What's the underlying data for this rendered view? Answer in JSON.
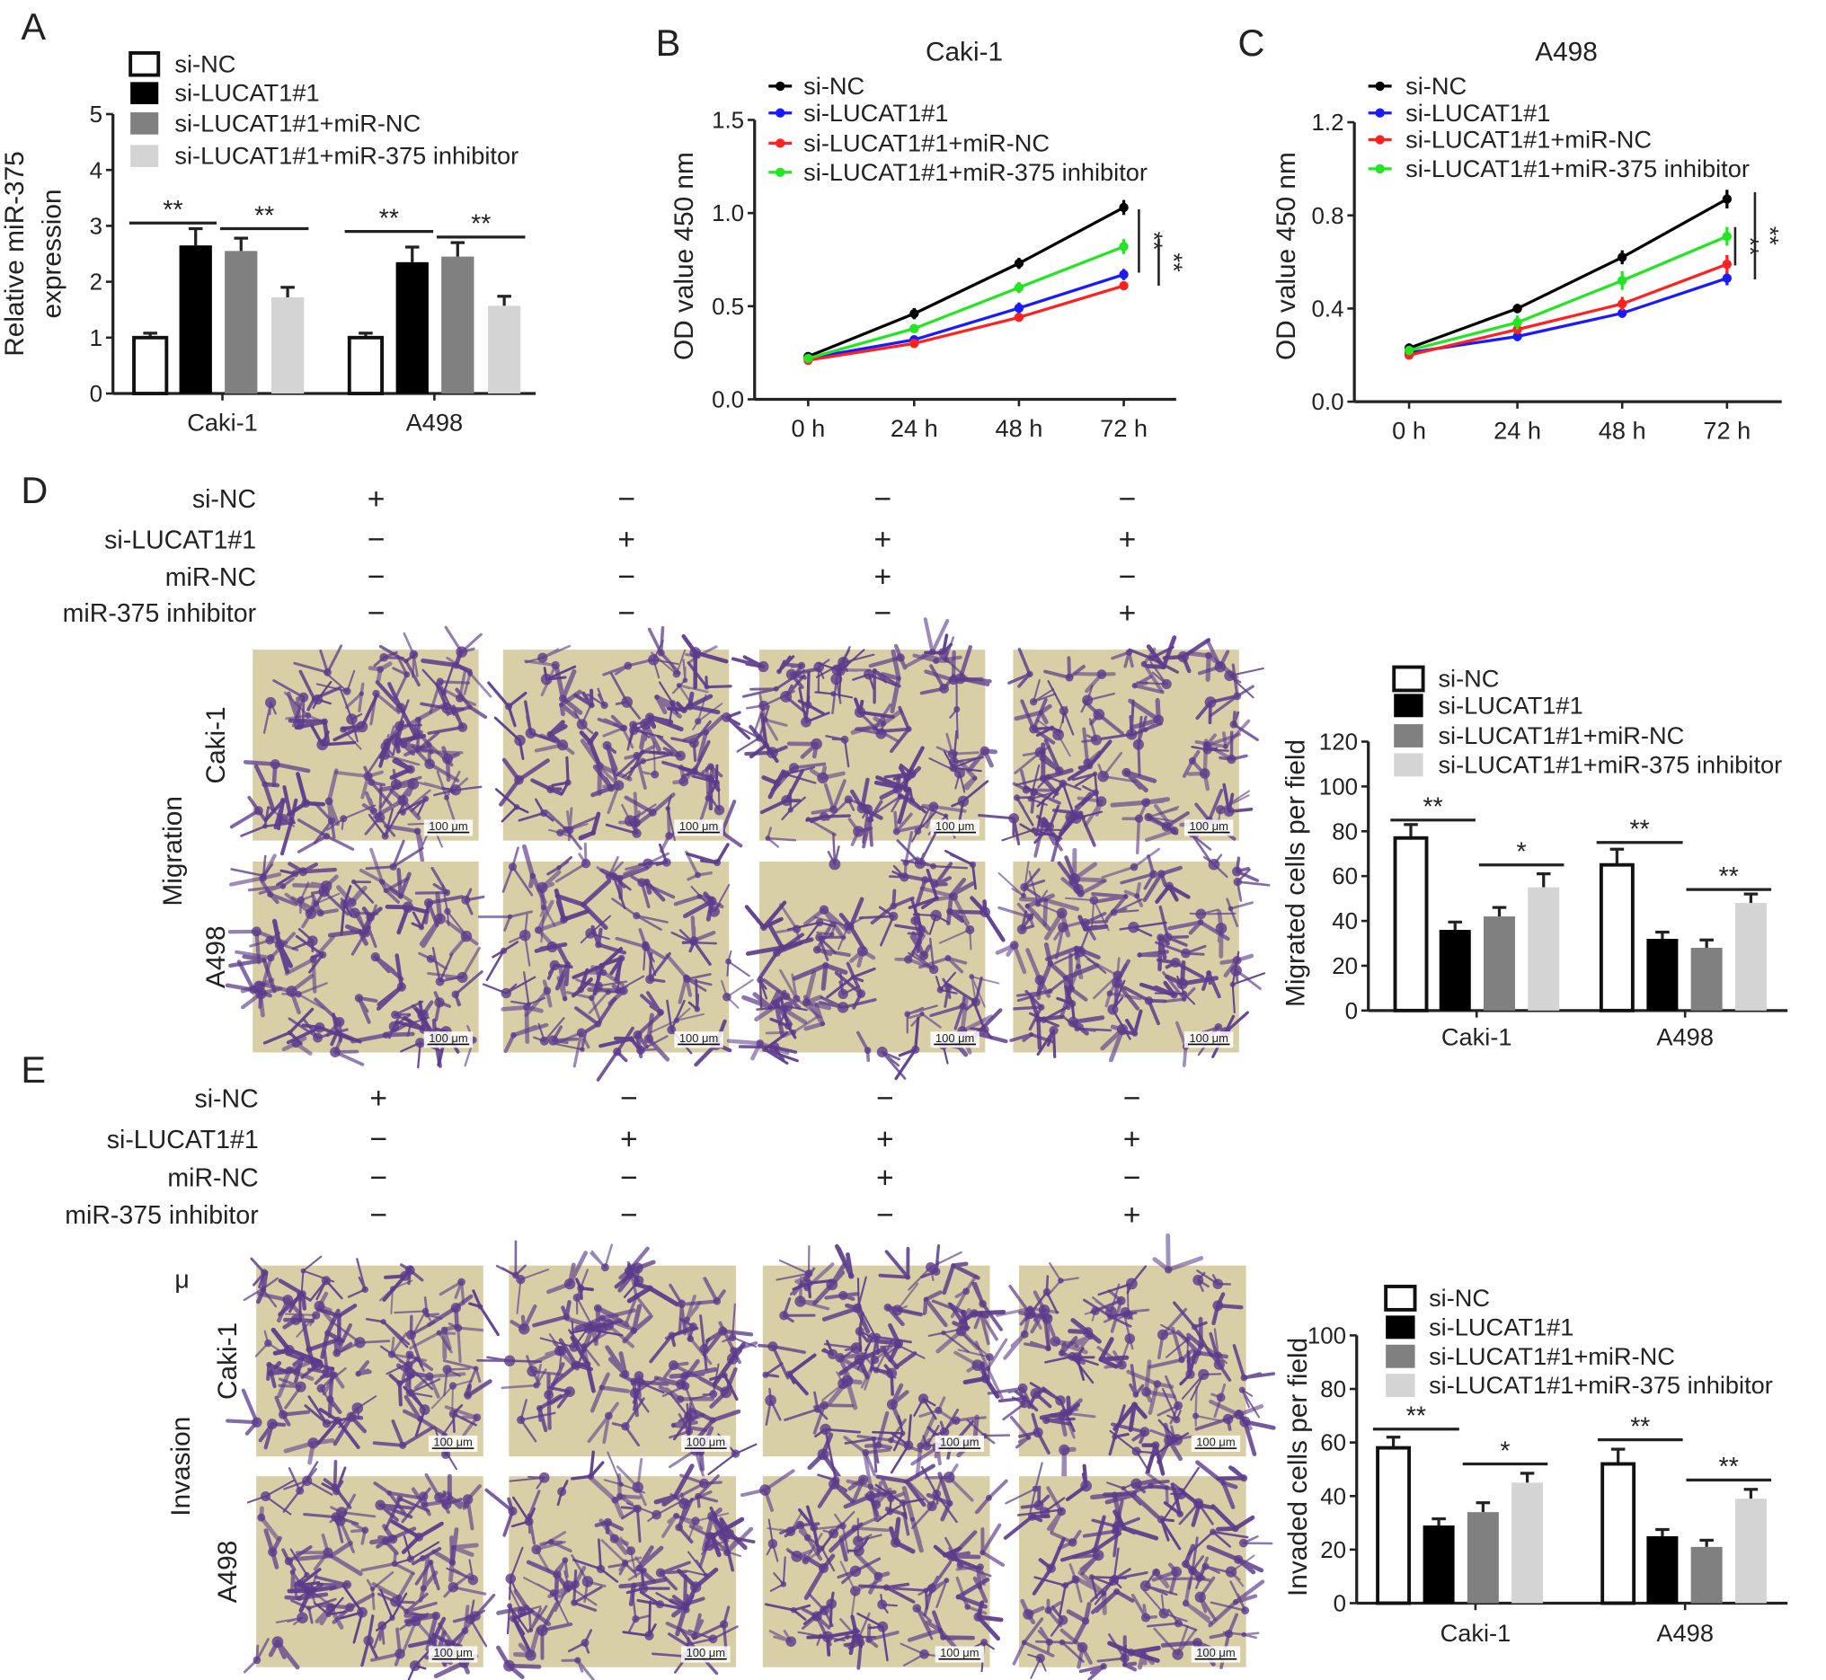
{
  "panel_letters": [
    "A",
    "B",
    "C",
    "D",
    "E"
  ],
  "legend_series": [
    "si-NC",
    "si-LUCAT1#1",
    "si-LUCAT1#1+miR-NC",
    "si-LUCAT1#1+miR-375 inhibitor"
  ],
  "colors": {
    "bar_fills": [
      "#ffffff",
      "#000000",
      "#808080",
      "#d4d4d4"
    ],
    "line_colors": [
      "#000000",
      "#1a1aff",
      "#ff2020",
      "#22e622"
    ],
    "micrograph_bg": "#d8cfa6",
    "stain": "#5b3a8c"
  },
  "chart_data": [
    {
      "id": "A",
      "type": "bar",
      "title": "",
      "ylabel": [
        "Relative miR-375",
        "expression"
      ],
      "ylim": [
        0,
        5
      ],
      "yticks": [
        "0",
        "1",
        "2",
        "3",
        "4",
        "5"
      ],
      "ytick_values": [
        0,
        1,
        2,
        3,
        4,
        5
      ],
      "categories": [
        "Caki-1",
        "A498"
      ],
      "series": [
        {
          "name": "si-NC",
          "values": [
            1.0,
            1.0
          ],
          "errors": [
            0.08,
            0.08
          ]
        },
        {
          "name": "si-LUCAT1#1",
          "values": [
            2.65,
            2.35
          ],
          "errors": [
            0.3,
            0.27
          ]
        },
        {
          "name": "si-LUCAT1#1+miR-NC",
          "values": [
            2.55,
            2.45
          ],
          "errors": [
            0.23,
            0.25
          ]
        },
        {
          "name": "si-LUCAT1#1+miR-375 inhibitor",
          "values": [
            1.72,
            1.57
          ],
          "errors": [
            0.18,
            0.17
          ]
        }
      ],
      "significance": [
        {
          "group": 0,
          "from": 0,
          "to": 1,
          "y": 3.05,
          "label": "**"
        },
        {
          "group": 0,
          "from": 2,
          "to": 3,
          "y": 2.95,
          "label": "**"
        },
        {
          "group": 1,
          "from": 0,
          "to": 1,
          "y": 2.9,
          "label": "**"
        },
        {
          "group": 1,
          "from": 2,
          "to": 3,
          "y": 2.8,
          "label": "**"
        }
      ],
      "legend": "top"
    },
    {
      "id": "B",
      "type": "line",
      "title": "Caki-1",
      "ylabel": [
        "OD value 450 nm"
      ],
      "ylim": [
        0,
        1.5
      ],
      "yticks": [
        "0.0",
        "0.5",
        "1.0",
        "1.5"
      ],
      "ytick_values": [
        0,
        0.5,
        1.0,
        1.5
      ],
      "x": [
        "0 h",
        "24 h",
        "48 h",
        "72 h"
      ],
      "series": [
        {
          "name": "si-NC",
          "values": [
            0.23,
            0.46,
            0.73,
            1.03
          ],
          "errors": [
            0.02,
            0.03,
            0.03,
            0.04
          ]
        },
        {
          "name": "si-LUCAT1#1",
          "values": [
            0.22,
            0.32,
            0.49,
            0.67
          ],
          "errors": [
            0.02,
            0.02,
            0.03,
            0.03
          ]
        },
        {
          "name": "si-LUCAT1#1+miR-NC",
          "values": [
            0.21,
            0.3,
            0.44,
            0.61
          ],
          "errors": [
            0.02,
            0.02,
            0.02,
            0.02
          ]
        },
        {
          "name": "si-LUCAT1#1+miR-375 inhibitor",
          "values": [
            0.22,
            0.38,
            0.6,
            0.82
          ],
          "errors": [
            0.02,
            0.02,
            0.03,
            0.04
          ]
        }
      ],
      "significance": [
        {
          "from": 1.02,
          "to": 0.68,
          "label": "**"
        },
        {
          "from": 0.86,
          "to": 0.61,
          "label": "**"
        }
      ],
      "legend": "top-left"
    },
    {
      "id": "C",
      "type": "line",
      "title": "A498",
      "ylabel": [
        "OD value 450 nm"
      ],
      "ylim": [
        0,
        1.2
      ],
      "yticks": [
        "0.0",
        "0.4",
        "0.8",
        "1.2"
      ],
      "ytick_values": [
        0,
        0.4,
        0.8,
        1.2
      ],
      "x": [
        "0 h",
        "24 h",
        "48 h",
        "72 h"
      ],
      "series": [
        {
          "name": "si-NC",
          "values": [
            0.23,
            0.4,
            0.62,
            0.87
          ],
          "errors": [
            0.02,
            0.02,
            0.03,
            0.04
          ]
        },
        {
          "name": "si-LUCAT1#1",
          "values": [
            0.21,
            0.28,
            0.38,
            0.53
          ],
          "errors": [
            0.02,
            0.02,
            0.02,
            0.03
          ]
        },
        {
          "name": "si-LUCAT1#1+miR-NC",
          "values": [
            0.2,
            0.31,
            0.42,
            0.59
          ],
          "errors": [
            0.02,
            0.02,
            0.03,
            0.04
          ]
        },
        {
          "name": "si-LUCAT1#1+miR-375 inhibitor",
          "values": [
            0.22,
            0.34,
            0.52,
            0.71
          ],
          "errors": [
            0.02,
            0.03,
            0.04,
            0.04
          ]
        }
      ],
      "significance": [
        {
          "from": 0.75,
          "to": 0.585,
          "label": "**"
        },
        {
          "from": 0.9,
          "to": 0.525,
          "label": "**"
        }
      ],
      "legend": "top-left"
    },
    {
      "id": "D",
      "type": "bar",
      "title": "",
      "ylabel": [
        "Migrated cells per field"
      ],
      "ylim": [
        0,
        120
      ],
      "yticks": [
        "0",
        "20",
        "40",
        "60",
        "80",
        "100",
        "120"
      ],
      "ytick_values": [
        0,
        20,
        40,
        60,
        80,
        100,
        120
      ],
      "categories": [
        "Caki-1",
        "A498"
      ],
      "series": [
        {
          "name": "si-NC",
          "values": [
            77,
            65
          ],
          "errors": [
            6,
            7
          ]
        },
        {
          "name": "si-LUCAT1#1",
          "values": [
            36,
            32
          ],
          "errors": [
            3.5,
            3
          ]
        },
        {
          "name": "si-LUCAT1#1+miR-NC",
          "values": [
            42,
            28
          ],
          "errors": [
            4,
            3.5
          ]
        },
        {
          "name": "si-LUCAT1#1+miR-375 inhibitor",
          "values": [
            55,
            48
          ],
          "errors": [
            6,
            4
          ]
        }
      ],
      "significance": [
        {
          "group": 0,
          "from": 0,
          "to": 1,
          "y": 85,
          "label": "**"
        },
        {
          "group": 0,
          "from": 2,
          "to": 3,
          "y": 65,
          "label": "*"
        },
        {
          "group": 1,
          "from": 0,
          "to": 1,
          "y": 75,
          "label": "**"
        },
        {
          "group": 1,
          "from": 2,
          "to": 3,
          "y": 54,
          "label": "**"
        }
      ],
      "legend": "top-right"
    },
    {
      "id": "E",
      "type": "bar",
      "title": "",
      "ylabel": [
        "Invaded cells per field"
      ],
      "ylim": [
        0,
        100
      ],
      "yticks": [
        "0",
        "20",
        "40",
        "60",
        "80",
        "100"
      ],
      "ytick_values": [
        0,
        20,
        40,
        60,
        80,
        100
      ],
      "categories": [
        "Caki-1",
        "A498"
      ],
      "series": [
        {
          "name": "si-NC",
          "values": [
            58,
            52
          ],
          "errors": [
            4,
            5.5
          ]
        },
        {
          "name": "si-LUCAT1#1",
          "values": [
            29,
            25
          ],
          "errors": [
            2.5,
            2.5
          ]
        },
        {
          "name": "si-LUCAT1#1+miR-NC",
          "values": [
            34,
            21
          ],
          "errors": [
            3.5,
            2.5
          ]
        },
        {
          "name": "si-LUCAT1#1+miR-375 inhibitor",
          "values": [
            45,
            39
          ],
          "errors": [
            3.5,
            3.5
          ]
        }
      ],
      "significance": [
        {
          "group": 0,
          "from": 0,
          "to": 1,
          "y": 65,
          "label": "**"
        },
        {
          "group": 0,
          "from": 2,
          "to": 3,
          "y": 52,
          "label": "*"
        },
        {
          "group": 1,
          "from": 0,
          "to": 1,
          "y": 61,
          "label": "**"
        },
        {
          "group": 1,
          "from": 2,
          "to": 3,
          "y": 46,
          "label": "**"
        }
      ],
      "legend": "top-right"
    }
  ],
  "conditions": {
    "row_labels": [
      "si-NC",
      "si-LUCAT1#1",
      "miR-NC",
      "miR-375 inhibitor"
    ],
    "matrix": [
      [
        "+",
        "−",
        "−",
        "−"
      ],
      [
        "−",
        "+",
        "+",
        "+"
      ],
      [
        "−",
        "−",
        "+",
        "−"
      ],
      [
        "−",
        "−",
        "−",
        "+"
      ]
    ]
  },
  "micrographs": {
    "D": {
      "section": "Migration",
      "rows": [
        "Caki-1",
        "A498"
      ],
      "scale_bar": "100 μm"
    },
    "E": {
      "section": "Invasion",
      "rows": [
        "Caki-1",
        "A498"
      ],
      "scale_bar": "100 μm"
    }
  },
  "stray_mark": "μ"
}
